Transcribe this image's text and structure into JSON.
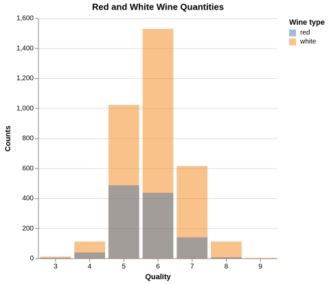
{
  "chart_data": {
    "type": "bar",
    "title": "Red and White Wine Quantities",
    "x_label": "Quality",
    "y_label": "Counts",
    "categories": [
      "3",
      "4",
      "5",
      "6",
      "7",
      "8",
      "9"
    ],
    "series": [
      {
        "name": "red",
        "color": "#4c78a8",
        "values": [
          5,
          41,
          489,
          439,
          142,
          9,
          0
        ]
      },
      {
        "name": "white",
        "color": "#f58518",
        "values": [
          14,
          114,
          1024,
          1531,
          617,
          114,
          5
        ]
      }
    ],
    "ylim": [
      0,
      1600
    ],
    "yticks": [
      0,
      200,
      400,
      600,
      800,
      {
        "value": 1000,
        "label": "1,000"
      },
      {
        "value": 1200,
        "label": "1,200"
      },
      {
        "value": 1400,
        "label": "1,400"
      },
      {
        "value": 1600,
        "label": "1,600"
      }
    ],
    "grid": true,
    "opacity": 0.5,
    "legend": "right",
    "legend_title": "Wine type"
  }
}
